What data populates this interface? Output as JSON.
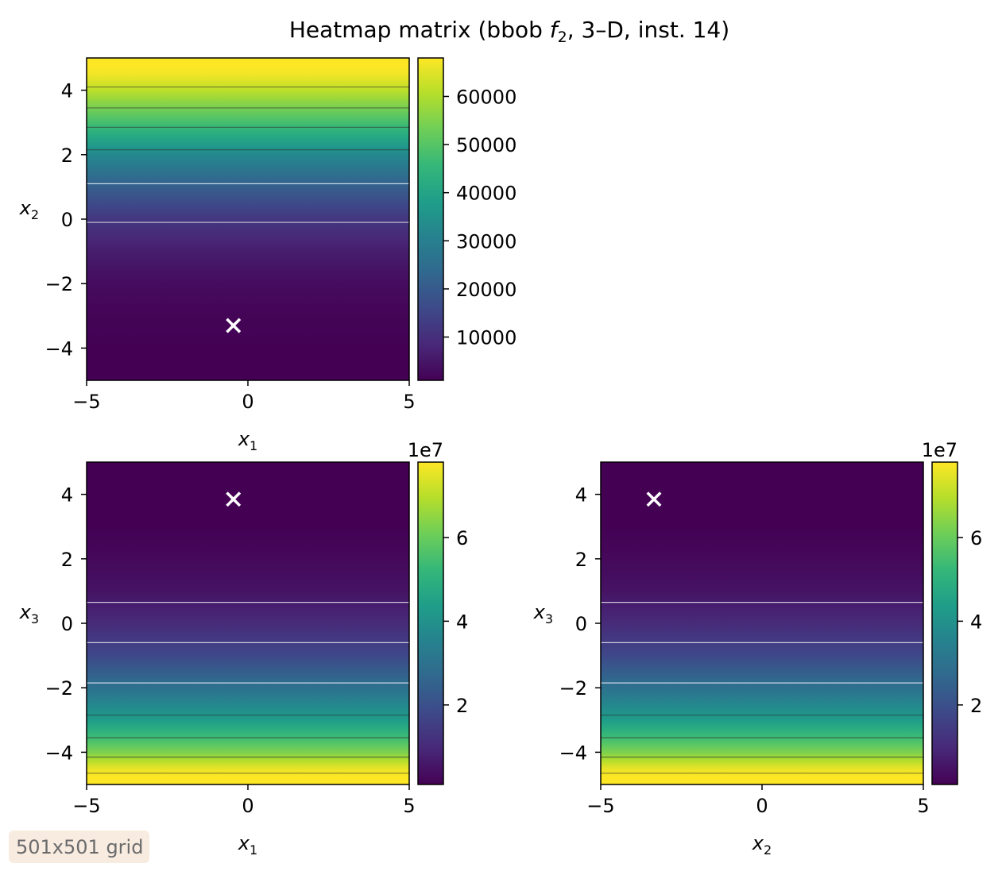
{
  "figure": {
    "title_text": "Heatmap matrix (bbob ",
    "title_f": "f",
    "title_sub": "2",
    "title_rest": ", 3–D, inst. 14)",
    "note": "501x501 grid"
  },
  "colors": {
    "viridis": [
      "#440154",
      "#482878",
      "#3e4989",
      "#31688e",
      "#26828e",
      "#1f9e89",
      "#35b779",
      "#6ece58",
      "#b5de2b",
      "#fde725"
    ],
    "marker": "#ffffff"
  },
  "chart_data": [
    {
      "type": "heatmap",
      "xlabel_var": "x",
      "xlabel_sub": "1",
      "ylabel_var": "x",
      "ylabel_sub": "2",
      "xlim": [
        -5,
        5
      ],
      "ylim": [
        -5,
        5
      ],
      "x_ticks": [
        "−5",
        "0",
        "5"
      ],
      "x_tick_values": [
        -5,
        0,
        5
      ],
      "y_ticks": [
        "−4",
        "−2",
        "0",
        "2",
        "4"
      ],
      "y_tick_values": [
        -4,
        -2,
        0,
        2,
        4
      ],
      "gradient_axis": "y",
      "gradient_stops": [
        [
          -5,
          0.0
        ],
        [
          -4,
          0.0
        ],
        [
          -3,
          0.01
        ],
        [
          -2,
          0.03
        ],
        [
          -1,
          0.08
        ],
        [
          0,
          0.16
        ],
        [
          1,
          0.3
        ],
        [
          2,
          0.47
        ],
        [
          3,
          0.7
        ],
        [
          4,
          0.9
        ],
        [
          4.6,
          1.0
        ],
        [
          5,
          1.0
        ]
      ],
      "contour_levels": [
        -0.1,
        1.1,
        2.15,
        2.85,
        3.45,
        4.1
      ],
      "optimum": [
        -0.45,
        -3.3
      ],
      "colorbar": {
        "min": 1000,
        "max": 68000,
        "ticks": [
          "10000",
          "20000",
          "30000",
          "40000",
          "50000",
          "60000"
        ],
        "tick_values": [
          10000,
          20000,
          30000,
          40000,
          50000,
          60000
        ],
        "offset": ""
      }
    },
    {
      "type": "heatmap",
      "xlabel_var": "x",
      "xlabel_sub": "1",
      "ylabel_var": "x",
      "ylabel_sub": "3",
      "xlim": [
        -5,
        5
      ],
      "ylim": [
        -5,
        5
      ],
      "x_ticks": [
        "−5",
        "0",
        "5"
      ],
      "x_tick_values": [
        -5,
        0,
        5
      ],
      "y_ticks": [
        "−4",
        "−2",
        "0",
        "2",
        "4"
      ],
      "y_tick_values": [
        -4,
        -2,
        0,
        2,
        4
      ],
      "gradient_axis": "y",
      "gradient_stops": [
        [
          -5,
          1.0
        ],
        [
          -4.6,
          1.0
        ],
        [
          -4,
          0.8
        ],
        [
          -3,
          0.55
        ],
        [
          -2,
          0.37
        ],
        [
          -1,
          0.22
        ],
        [
          0,
          0.12
        ],
        [
          1,
          0.05
        ],
        [
          2,
          0.02
        ],
        [
          3,
          0.0
        ],
        [
          5,
          0.0
        ]
      ],
      "contour_levels": [
        0.65,
        -0.6,
        -1.85,
        -2.85,
        -3.55,
        -4.15,
        -4.65
      ],
      "optimum": [
        -0.45,
        3.85
      ],
      "colorbar": {
        "min": 0.1,
        "max": 7.8,
        "ticks": [
          "2",
          "4",
          "6"
        ],
        "tick_values": [
          2,
          4,
          6
        ],
        "offset": "1e7"
      }
    },
    {
      "type": "heatmap",
      "xlabel_var": "x",
      "xlabel_sub": "2",
      "ylabel_var": "x",
      "ylabel_sub": "3",
      "xlim": [
        -5,
        5
      ],
      "ylim": [
        -5,
        5
      ],
      "x_ticks": [
        "−5",
        "0",
        "5"
      ],
      "x_tick_values": [
        -5,
        0,
        5
      ],
      "y_ticks": [
        "−4",
        "−2",
        "0",
        "2",
        "4"
      ],
      "y_tick_values": [
        -4,
        -2,
        0,
        2,
        4
      ],
      "gradient_axis": "y",
      "gradient_stops": [
        [
          -5,
          1.0
        ],
        [
          -4.6,
          1.0
        ],
        [
          -4,
          0.8
        ],
        [
          -3,
          0.55
        ],
        [
          -2,
          0.37
        ],
        [
          -1,
          0.22
        ],
        [
          0,
          0.12
        ],
        [
          1,
          0.05
        ],
        [
          2,
          0.02
        ],
        [
          3,
          0.0
        ],
        [
          5,
          0.0
        ]
      ],
      "contour_levels": [
        0.65,
        -0.6,
        -1.85,
        -2.85,
        -3.55,
        -4.15,
        -4.65
      ],
      "optimum": [
        -3.35,
        3.85
      ],
      "colorbar": {
        "min": 0.1,
        "max": 7.8,
        "ticks": [
          "2",
          "4",
          "6"
        ],
        "tick_values": [
          2,
          4,
          6
        ],
        "offset": "1e7"
      }
    }
  ]
}
